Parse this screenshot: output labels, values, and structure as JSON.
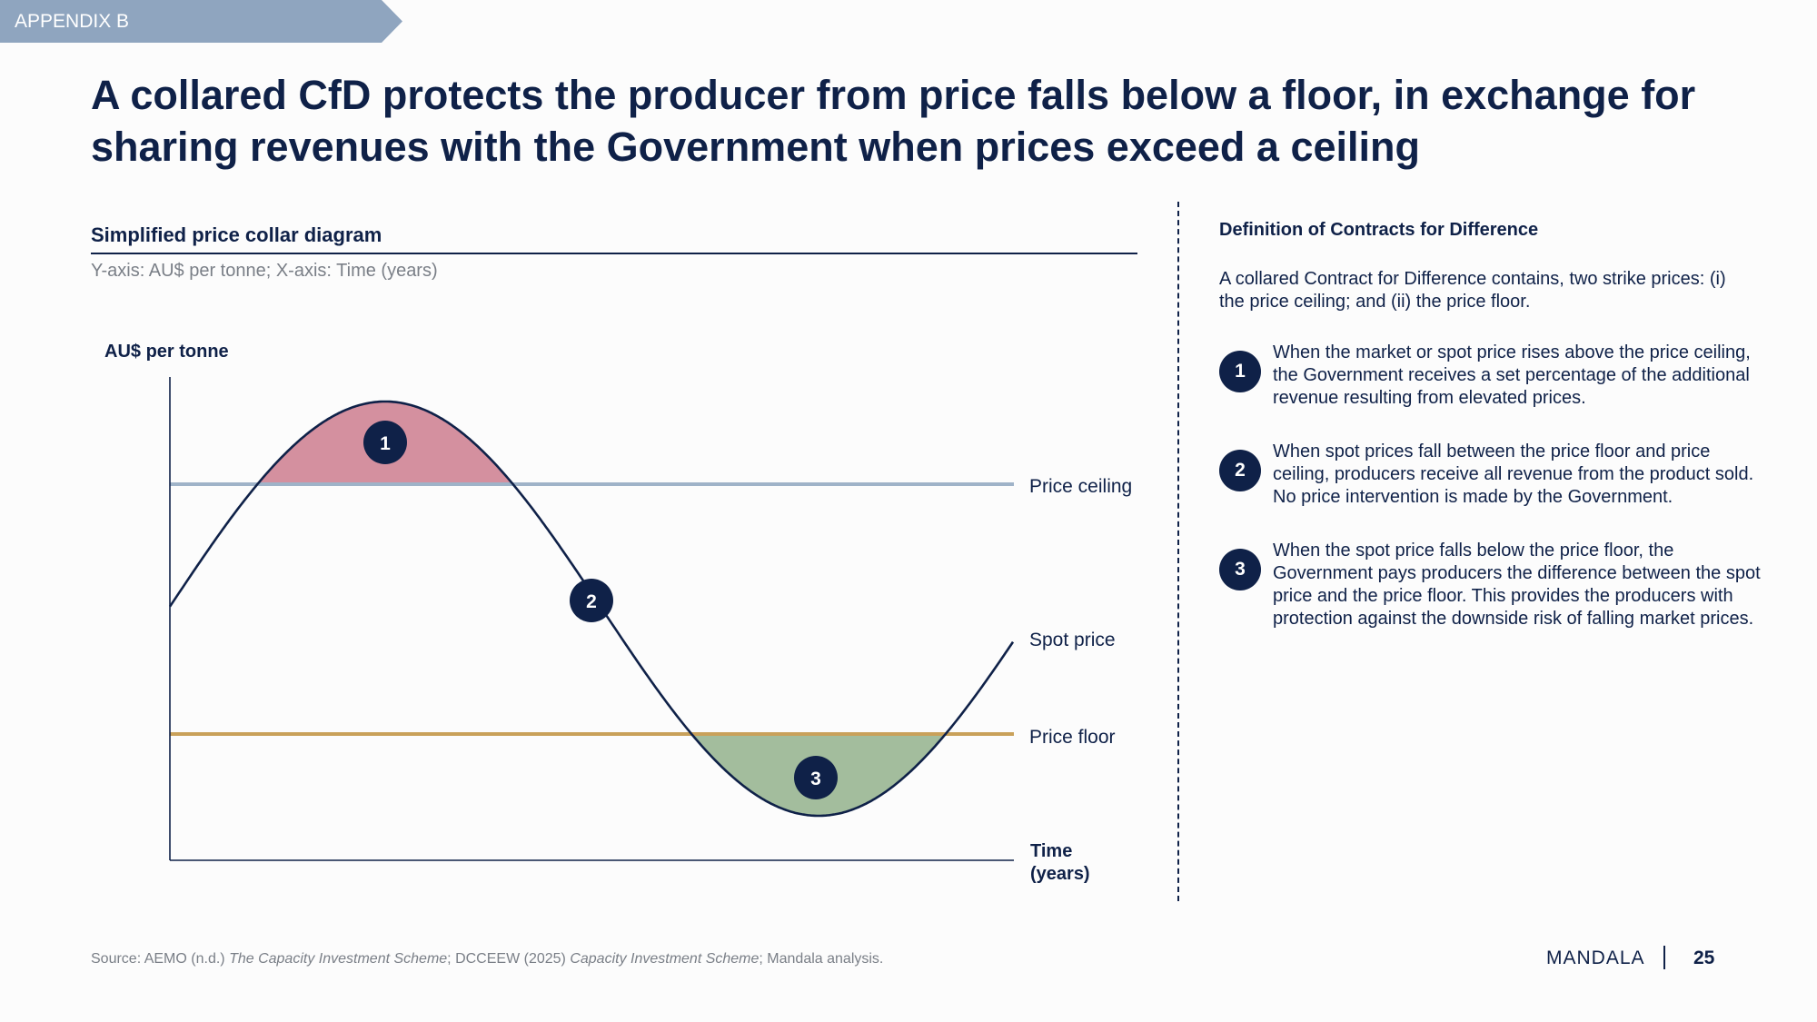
{
  "header": {
    "tag": "APPENDIX B",
    "title": "A collared CfD protects the producer from price falls below a floor, in exchange for sharing revenues with the Government when prices exceed a ceiling"
  },
  "diagram": {
    "section_title": "Simplified price collar diagram",
    "axis_note": "Y-axis: AU$ per tonne; X-axis: Time (years)",
    "y_axis_label": "AU$ per tonne",
    "x_axis_label_line1": "Time",
    "x_axis_label_line2": "(years)",
    "lines": {
      "ceiling": "Price ceiling",
      "spot": "Spot price",
      "floor": "Price floor"
    },
    "markers": [
      "1",
      "2",
      "3"
    ],
    "colors": {
      "ceiling": "#9fb3c8",
      "floor": "#c9a15a",
      "spot": "#0f2148",
      "above_ceiling_fill": "#d4909f",
      "below_floor_fill": "#a3bd9d"
    }
  },
  "definition": {
    "title": "Definition of Contracts for Difference",
    "intro": "A collared Contract for Difference contains, two strike prices: (i) the price ceiling; and (ii) the price floor.",
    "points": [
      {
        "num": "1",
        "text": "When the market or spot price rises above the price ceiling, the Government receives a set percentage of the additional revenue resulting from elevated prices."
      },
      {
        "num": "2",
        "text": "When spot prices fall between the price floor and price ceiling, producers receive all revenue from the product sold. No price intervention is made by the Government."
      },
      {
        "num": "3",
        "text": "When the spot price falls below the price floor, the Government pays producers the difference between the spot price and the price floor. This provides the producers with protection against the downside risk of falling market prices."
      }
    ]
  },
  "footer": {
    "source_prefix": "Source: AEMO (n.d.) ",
    "source_title1": "The Capacity Investment Scheme",
    "source_mid": "; DCCEEW (2025) ",
    "source_title2": "Capacity Investment Scheme",
    "source_suffix": "; Mandala analysis.",
    "brand": "MANDALA",
    "page": "25"
  }
}
